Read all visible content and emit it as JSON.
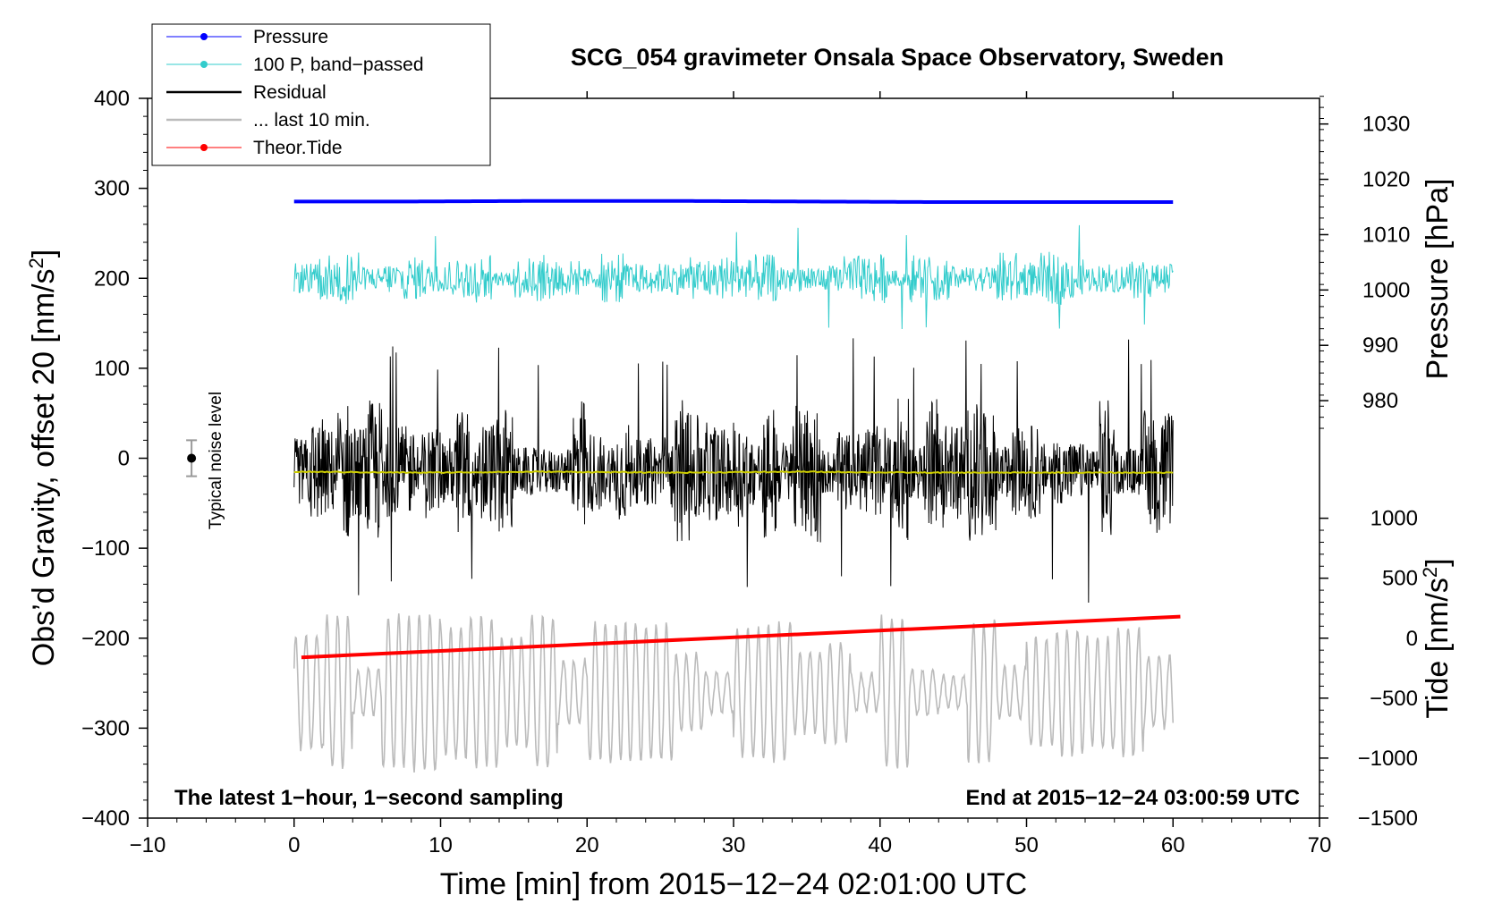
{
  "chart_data": {
    "type": "line",
    "title": "SCG_054 gravimeter Onsala Space Observatory, Sweden",
    "xlabel": "Time [min] from 2015−12−24 02:01:00 UTC",
    "ylabel_left": "Obs’d Gravity, offset 20 [nm/s²]",
    "ylabel_left_main": "Obs’d Gravity, offset 20 [nm/s",
    "ylabel_left_sup": "2",
    "ylabel_left_end": "]",
    "ylabel_right_pressure": "Pressure [hPa]",
    "ylabel_right_tide_main": "Tide [nm/s",
    "ylabel_right_tide_sup": "2",
    "ylabel_right_tide_end": "]",
    "xlim": [
      -10,
      70
    ],
    "ylim": [
      -400,
      400
    ],
    "x_ticks": [
      -10,
      0,
      10,
      20,
      30,
      40,
      50,
      60,
      70
    ],
    "x_tick_labels": [
      "−10",
      "0",
      "10",
      "20",
      "30",
      "40",
      "50",
      "60",
      "70"
    ],
    "y_ticks": [
      400,
      300,
      200,
      100,
      0,
      -100,
      -200,
      -300,
      -400
    ],
    "y_tick_labels": [
      "400",
      "300",
      "200",
      "100",
      "0",
      "−100",
      "−200",
      "−300",
      "−400"
    ],
    "pressure_ticks": [
      1030,
      1020,
      1010,
      1000,
      990,
      980
    ],
    "pressure_tick_labels": [
      "1030",
      "1020",
      "1010",
      "1000",
      "990",
      "980"
    ],
    "pressure_axis": {
      "hpa_ref": 1000,
      "gravity_at_ref": 187,
      "gravity_per_hpa": 6.15
    },
    "tide_ticks": [
      1000,
      500,
      0,
      -500,
      -1000,
      -1500
    ],
    "tide_tick_labels": [
      "1000",
      "500",
      "0",
      "−500",
      "−1000",
      "−1500"
    ],
    "tide_axis": {
      "gravity_at_zero": -200,
      "gravity_per_nms2": 0.1333
    },
    "legend_position": "top-left",
    "note_left": "The latest 1−hour, 1−second sampling",
    "note_right": "End at 2015−12−24 03:00:59 UTC",
    "noise_label": "Typical noise level",
    "noise_bar": {
      "x": -7,
      "center": 0,
      "half_width": 20
    },
    "series": [
      {
        "name": "Pressure",
        "color": "#0000ff",
        "kind": "line",
        "x_range": [
          0,
          60
        ],
        "values_hpa": [
          1016.0,
          1016.0,
          1016.1,
          1016.1,
          1016.0,
          1015.9,
          1015.9,
          1015.9
        ],
        "legend_marker": "dot"
      },
      {
        "name": "100 P, band−passed",
        "color": "#33cccc",
        "kind": "noise",
        "x_range": [
          0,
          60
        ],
        "center": 200,
        "amplitude": 20,
        "peak": 60,
        "legend_marker": "dot"
      },
      {
        "name": "Residual",
        "color": "#000000",
        "kind": "noise",
        "x_range": [
          0,
          60
        ],
        "center": -15,
        "amplitude": 55,
        "peak": 150,
        "legend_marker": "none"
      },
      {
        "name": "... last 10 min.",
        "color": "#bbbbbb",
        "kind": "oscillation",
        "x_range": [
          0,
          60
        ],
        "center": -260,
        "amplitude": 55,
        "peak": 110,
        "legend_marker": "none"
      },
      {
        "name": "Theor.Tide",
        "color": "#ff0000",
        "kind": "line",
        "x": [
          0.5,
          60.5
        ],
        "values_nms2": [
          -160,
          180
        ],
        "legend_marker": "dot"
      },
      {
        "name": "Residual mean",
        "color": "#cccc00",
        "kind": "line",
        "x_range": [
          0,
          60
        ],
        "values": [
          -15,
          -16,
          -15,
          -16,
          -15,
          -16,
          -16,
          -16
        ],
        "in_legend": false
      }
    ]
  }
}
